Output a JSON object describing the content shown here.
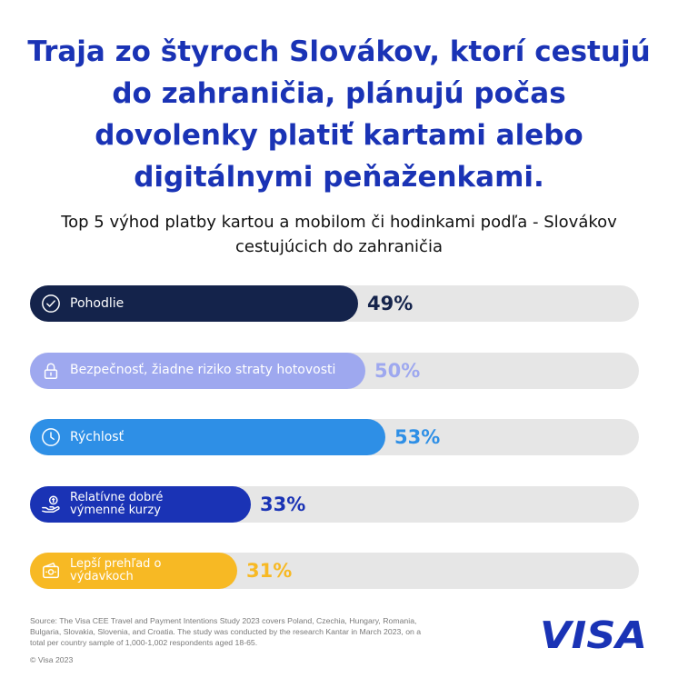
{
  "headline": "Traja zo štyroch Slovákov, ktorí cestujú do zahraničia, plánujú počas dovolenky platiť kartami alebo digitálnymi peňaženkami.",
  "subheadline": "Top 5 výhod platby kartou a mobilom či hodinkami podľa - Slovákov cestujúcich do zahraničia",
  "chart_data": {
    "type": "bar",
    "orientation": "horizontal",
    "title": "Top 5 výhod platby kartou a mobilom či hodinkami podľa - Slovákov cestujúcich do zahraničia",
    "categories": [
      "Pohodlie",
      "Bezpečnosť, žiadne riziko straty hotovosti",
      "Rýchlosť",
      "Relatívne dobré výmenné kurzy",
      "Lepší prehľad o výdavkoch"
    ],
    "values": [
      49,
      50,
      53,
      33,
      31
    ],
    "value_labels": [
      "49%",
      "50%",
      "53%",
      "33%",
      "31%"
    ],
    "unit": "%",
    "xlim": [
      0,
      100
    ],
    "grid": false,
    "bar_colors": [
      "#14234b",
      "#9ea8ef",
      "#2e8fe6",
      "#1a33b5",
      "#f7b924"
    ],
    "value_label_colors": [
      "#14234b",
      "#9ea8ef",
      "#2e8fe6",
      "#1a33b5",
      "#f7b924"
    ],
    "icons": [
      "check-circle-icon",
      "lock-icon",
      "clock-icon",
      "hand-money-icon",
      "wallet-icon"
    ]
  },
  "source_note": "Source: The Visa CEE Travel and Payment Intentions Study 2023 covers Poland, Czechia, Hungary, Romania, Bulgaria, Slovakia, Slovenia, and Croatia. The study was conducted by the research Kantar in March 2023, on a total per country sample of 1,000-1,002 respondents aged 18-65.",
  "copyright": "© Visa 2023",
  "brand": {
    "name": "VISA",
    "color": "#1a33b5"
  }
}
